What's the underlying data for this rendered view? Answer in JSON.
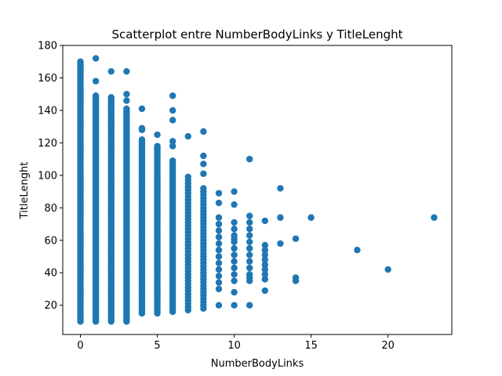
{
  "chart_data": {
    "type": "scatter",
    "title": "Scatterplot entre NumberBodyLinks y TitleLenght",
    "xlabel": "NumberBodyLinks",
    "ylabel": "TitleLenght",
    "xlim": [
      -1.15,
      24.15
    ],
    "ylim": [
      2,
      180
    ],
    "xticks": [
      0,
      5,
      10,
      15,
      20
    ],
    "yticks": [
      20,
      40,
      60,
      80,
      100,
      120,
      140,
      160,
      180
    ],
    "grid": false,
    "color": "#1f77b4",
    "columns": [
      {
        "x": 0,
        "min": 10,
        "max": 170,
        "step": 1
      },
      {
        "x": 1,
        "min": 10,
        "max": 149,
        "step": 1
      },
      {
        "x": 2,
        "min": 10,
        "max": 148,
        "step": 1
      },
      {
        "x": 3,
        "min": 10,
        "max": 141,
        "step": 1
      },
      {
        "x": 4,
        "min": 15,
        "max": 122,
        "step": 1
      },
      {
        "x": 5,
        "min": 15,
        "max": 118,
        "step": 1
      },
      {
        "x": 6,
        "min": 16,
        "max": 110,
        "step": 1.5
      },
      {
        "x": 7,
        "min": 17,
        "max": 99,
        "step": 2
      },
      {
        "x": 8,
        "min": 18,
        "max": 92,
        "step": 2
      },
      {
        "x": 9,
        "min": 30,
        "max": 76,
        "step": 4
      },
      {
        "x": 10,
        "min": 35,
        "max": 74,
        "step": 4
      },
      {
        "x": 11,
        "min": 35,
        "max": 71,
        "step": 4
      },
      {
        "x": 12,
        "min": 39,
        "max": 55,
        "step": 3
      }
    ],
    "points": [
      {
        "x": 1,
        "y": 172
      },
      {
        "x": 1,
        "y": 158
      },
      {
        "x": 2,
        "y": 164
      },
      {
        "x": 3,
        "y": 164
      },
      {
        "x": 3,
        "y": 150
      },
      {
        "x": 3,
        "y": 146
      },
      {
        "x": 4,
        "y": 141
      },
      {
        "x": 4,
        "y": 129
      },
      {
        "x": 4,
        "y": 128
      },
      {
        "x": 5,
        "y": 125
      },
      {
        "x": 6,
        "y": 149
      },
      {
        "x": 6,
        "y": 140
      },
      {
        "x": 6,
        "y": 134
      },
      {
        "x": 6,
        "y": 121
      },
      {
        "x": 6,
        "y": 118
      },
      {
        "x": 7,
        "y": 124
      },
      {
        "x": 8,
        "y": 127
      },
      {
        "x": 8,
        "y": 112
      },
      {
        "x": 8,
        "y": 107
      },
      {
        "x": 8,
        "y": 101
      },
      {
        "x": 9,
        "y": 89
      },
      {
        "x": 9,
        "y": 83
      },
      {
        "x": 9,
        "y": 20
      },
      {
        "x": 10,
        "y": 90
      },
      {
        "x": 10,
        "y": 82
      },
      {
        "x": 10,
        "y": 61
      },
      {
        "x": 10,
        "y": 28
      },
      {
        "x": 10,
        "y": 20
      },
      {
        "x": 11,
        "y": 110
      },
      {
        "x": 11,
        "y": 75
      },
      {
        "x": 11,
        "y": 20
      },
      {
        "x": 11,
        "y": 37
      },
      {
        "x": 12,
        "y": 72
      },
      {
        "x": 12,
        "y": 57
      },
      {
        "x": 12,
        "y": 29
      },
      {
        "x": 12,
        "y": 36
      },
      {
        "x": 13,
        "y": 92
      },
      {
        "x": 13,
        "y": 74
      },
      {
        "x": 13,
        "y": 58
      },
      {
        "x": 14,
        "y": 61
      },
      {
        "x": 14,
        "y": 37
      },
      {
        "x": 14,
        "y": 35
      },
      {
        "x": 15,
        "y": 74
      },
      {
        "x": 18,
        "y": 54
      },
      {
        "x": 20,
        "y": 42
      },
      {
        "x": 23,
        "y": 74
      }
    ]
  }
}
